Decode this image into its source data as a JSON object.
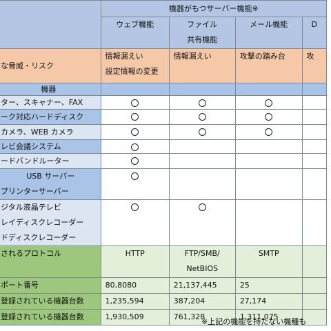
{
  "header": {
    "group_title": "機器がもつサーバー機能※",
    "columns": [
      {
        "id": "web",
        "lines": [
          "ウェブ機能"
        ]
      },
      {
        "id": "file",
        "lines": [
          "ファイル",
          "共有機能"
        ]
      },
      {
        "id": "mail",
        "lines": [
          "メール機能"
        ]
      },
      {
        "id": "dns",
        "lines": [
          "D"
        ]
      }
    ]
  },
  "risk_row": {
    "label": "な脅威・リスク",
    "cells": [
      [
        "情報漏えい",
        "設定情報の変更"
      ],
      [
        "情報漏えい"
      ],
      [
        "攻撃の踏み台"
      ],
      [
        "攻"
      ]
    ]
  },
  "device_header": "機器",
  "devices": [
    {
      "label": [
        "ター、スキャナー、FAX"
      ],
      "marks": [
        true,
        true,
        true,
        false
      ],
      "style": "pale"
    },
    {
      "label": [
        "ーク対応ハードディスク"
      ],
      "marks": [
        true,
        true,
        true,
        false
      ],
      "style": "blue"
    },
    {
      "label": [
        "カメラ、WEB カメラ"
      ],
      "marks": [
        true,
        true,
        true,
        false
      ],
      "style": "pale"
    },
    {
      "label": [
        "レビ会議システム"
      ],
      "marks": [
        true,
        false,
        false,
        false
      ],
      "style": "blue"
    },
    {
      "label": [
        "ードバンドルーター"
      ],
      "marks": [
        true,
        false,
        false,
        false
      ],
      "style": "pale"
    },
    {
      "label": [
        "USB サーバー",
        "プリンターサーバー"
      ],
      "marks": [
        true,
        false,
        false,
        false
      ],
      "style": "blue",
      "centered_first": true
    },
    {
      "label": [
        "ジタル液晶テレビ",
        "レイディスクレコーダー",
        "ドディスクレコーダー"
      ],
      "marks": [
        true,
        true,
        false,
        false
      ],
      "style": "pale"
    }
  ],
  "protocol_row": {
    "label": "されるプロトコル",
    "values": [
      [
        "HTTP"
      ],
      [
        "FTP/SMB/",
        "NetBIOS"
      ],
      [
        "SMTP"
      ],
      [
        ""
      ]
    ]
  },
  "port_row": {
    "label": "ポート番号",
    "values": [
      "80,8080",
      "21,137,445",
      "25",
      ""
    ]
  },
  "count_rows": [
    {
      "label": "登録されている機器台数",
      "values": [
        "1,235,594",
        "387,204",
        "27,174",
        ""
      ]
    },
    {
      "label": "登録されている機器台数",
      "values": [
        "1,930,509",
        "761,328",
        "1,311,075",
        ""
      ]
    }
  ],
  "footnote": "※上記の機能を持たない機種も"
}
